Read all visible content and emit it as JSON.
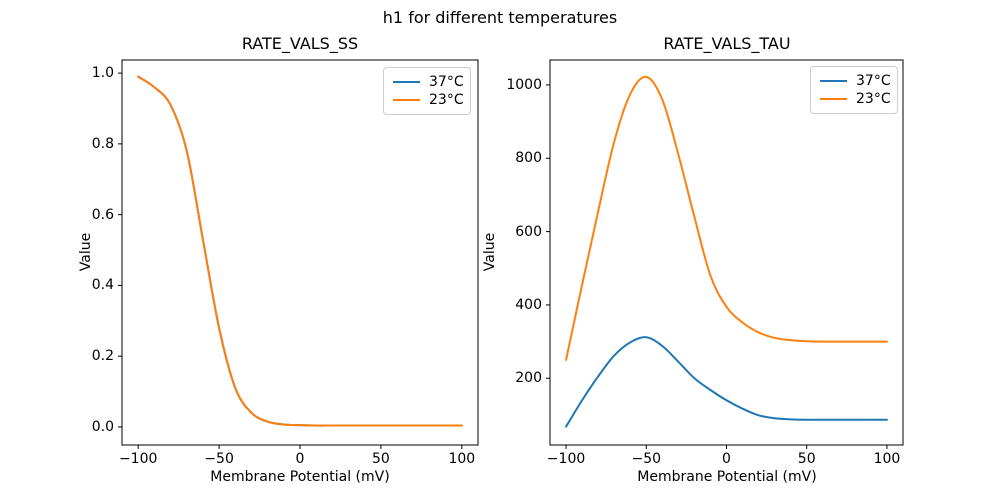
{
  "figure": {
    "suptitle": "h1 for different temperatures",
    "background": "#ffffff"
  },
  "chart_data": [
    {
      "type": "line",
      "title": "RATE_VALS_SS",
      "xlabel": "Membrane Potential (mV)",
      "ylabel": "Value",
      "grid": false,
      "legend_position": "upper right",
      "xlim": [
        -110,
        110
      ],
      "ylim": [
        -0.051,
        1.037
      ],
      "xticks": [
        -100,
        -50,
        0,
        50,
        100
      ],
      "xtick_labels": [
        "−100",
        "−50",
        "0",
        "50",
        "100"
      ],
      "yticks": [
        0.0,
        0.2,
        0.4,
        0.6,
        0.8,
        1.0
      ],
      "ytick_labels": [
        "0.0",
        "0.2",
        "0.4",
        "0.6",
        "0.8",
        "1.0"
      ],
      "x": [
        -100,
        -90,
        -80,
        -70,
        -60,
        -50,
        -40,
        -30,
        -20,
        -10,
        0,
        10,
        20,
        30,
        40,
        50,
        60,
        70,
        80,
        90,
        100
      ],
      "series": [
        {
          "name": "37°C",
          "color": "#1f77b4",
          "values": [
            0.99,
            0.96,
            0.91,
            0.78,
            0.53,
            0.28,
            0.11,
            0.04,
            0.015,
            0.007,
            0.005,
            0.004,
            0.004,
            0.004,
            0.004,
            0.004,
            0.004,
            0.004,
            0.004,
            0.004,
            0.004
          ]
        },
        {
          "name": "23°C",
          "color": "#ff7f0e",
          "values": [
            0.99,
            0.96,
            0.91,
            0.78,
            0.53,
            0.28,
            0.11,
            0.04,
            0.015,
            0.007,
            0.005,
            0.004,
            0.004,
            0.004,
            0.004,
            0.004,
            0.004,
            0.004,
            0.004,
            0.004,
            0.004
          ]
        }
      ]
    },
    {
      "type": "line",
      "title": "RATE_VALS_TAU",
      "xlabel": "Membrane Potential (mV)",
      "ylabel": "Value",
      "grid": false,
      "legend_position": "upper right",
      "xlim": [
        -110,
        110
      ],
      "ylim": [
        18,
        1068
      ],
      "xticks": [
        -100,
        -50,
        0,
        50,
        100
      ],
      "xtick_labels": [
        "−100",
        "−50",
        "0",
        "50",
        "100"
      ],
      "yticks": [
        200,
        400,
        600,
        800,
        1000
      ],
      "ytick_labels": [
        "200",
        "400",
        "600",
        "800",
        "1000"
      ],
      "x": [
        -100,
        -90,
        -80,
        -70,
        -60,
        -50,
        -40,
        -30,
        -20,
        -10,
        0,
        10,
        20,
        30,
        40,
        50,
        60,
        70,
        80,
        90,
        100
      ],
      "series": [
        {
          "name": "37°C",
          "color": "#1f77b4",
          "values": [
            68,
            140,
            205,
            262,
            298,
            312,
            288,
            245,
            200,
            168,
            140,
            117,
            99,
            91,
            88,
            87,
            87,
            87,
            87,
            87,
            87
          ]
        },
        {
          "name": "23°C",
          "color": "#ff7f0e",
          "values": [
            250,
            455,
            655,
            845,
            975,
            1022,
            960,
            810,
            640,
            480,
            395,
            352,
            325,
            310,
            304,
            301,
            300,
            300,
            300,
            300,
            300
          ]
        }
      ]
    }
  ]
}
